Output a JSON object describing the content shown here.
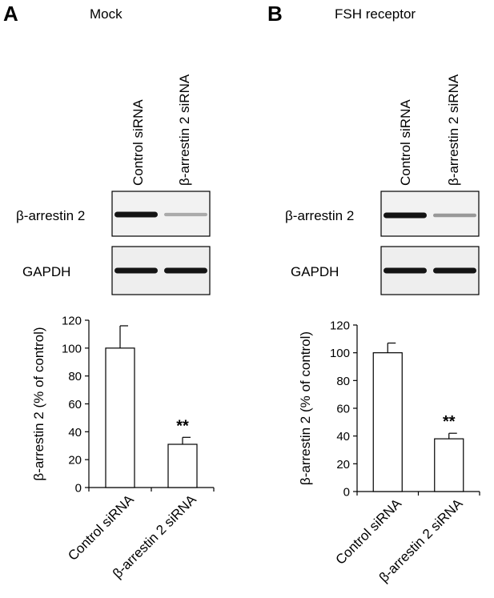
{
  "panels": [
    {
      "letter": "A",
      "title": "Mock",
      "lane_labels": [
        "Control siRNA",
        "β-arrestin 2 siRNA"
      ],
      "blot_labels": [
        "β-arrestin 2",
        "GAPDH"
      ],
      "band_intensity": {
        "beta_arrestin_2": [
          1.0,
          0.3
        ],
        "GAPDH": [
          1.0,
          1.0
        ]
      }
    },
    {
      "letter": "B",
      "title": "FSH receptor",
      "lane_labels": [
        "Control siRNA",
        "β-arrestin 2 siRNA"
      ],
      "blot_labels": [
        "β-arrestin 2",
        "GAPDH"
      ],
      "band_intensity": {
        "beta_arrestin_2": [
          1.0,
          0.38
        ],
        "GAPDH": [
          1.0,
          1.0
        ]
      }
    }
  ],
  "chart_data": [
    {
      "type": "bar",
      "panel": "A",
      "categories": [
        "Control siRNA",
        "β-arrestin 2 siRNA"
      ],
      "values": [
        100,
        31
      ],
      "errors": [
        16,
        5
      ],
      "annotations": [
        "",
        "**"
      ],
      "title": "",
      "xlabel": "",
      "ylabel": "β-arrestin 2 (% of control)",
      "ylim": [
        0,
        120
      ],
      "yticks": [
        0,
        20,
        40,
        60,
        80,
        100,
        120
      ],
      "bar_color": "#ffffff",
      "grid": false
    },
    {
      "type": "bar",
      "panel": "B",
      "categories": [
        "Control siRNA",
        "β-arrestin 2 siRNA"
      ],
      "values": [
        100,
        38
      ],
      "errors": [
        7,
        4
      ],
      "annotations": [
        "",
        "**"
      ],
      "title": "",
      "xlabel": "",
      "ylabel": "β-arrestin 2 (% of control)",
      "ylim": [
        0,
        120
      ],
      "yticks": [
        0,
        20,
        40,
        60,
        80,
        100,
        120
      ],
      "bar_color": "#ffffff",
      "grid": false
    }
  ]
}
